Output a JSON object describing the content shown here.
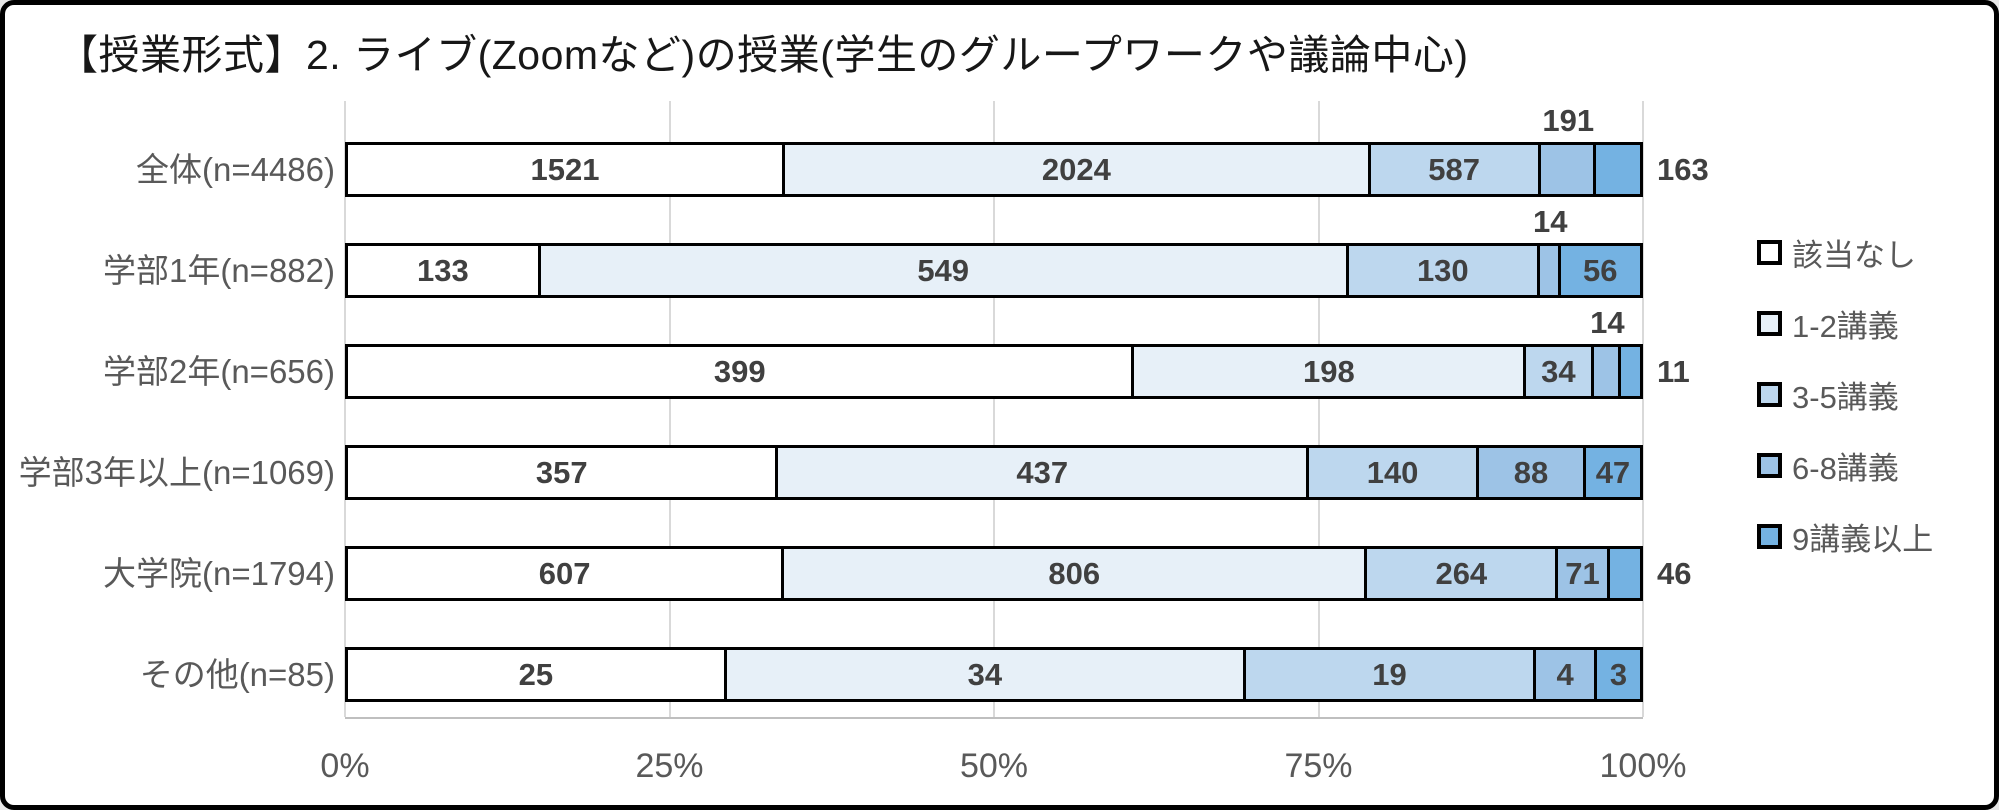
{
  "title": "【授業形式】2. ライブ(Zoomなど)の授業(学生のグループワークや議論中心)",
  "chart_data": {
    "type": "bar",
    "stacked": true,
    "orientation": "horizontal",
    "title": "【授業形式】2. ライブ(Zoomなど)の授業(学生のグループワークや議論中心)",
    "xlabel": "",
    "ylabel": "",
    "xlim": [
      0,
      100
    ],
    "x_ticks": [
      "0%",
      "25%",
      "50%",
      "75%",
      "100%"
    ],
    "grid": true,
    "legend_position": "right",
    "legend": [
      "該当なし",
      "1-2講義",
      "3-5講義",
      "6-8講義",
      "9講義以上"
    ],
    "series_colors": [
      "#ffffff",
      "#e7f0f8",
      "#bdd7ee",
      "#9dc3e6",
      "#74b2e2"
    ],
    "categories": [
      "全体(n=4486)",
      "学部1年(n=882)",
      "学部2年(n=656)",
      "学部3年以上(n=1069)",
      "大学院(n=1794)",
      "その他(n=85)"
    ],
    "rows": [
      {
        "category": "全体(n=4486)",
        "n": 4486,
        "values": [
          1521,
          2024,
          587,
          191,
          163
        ],
        "label_pos": [
          "inside",
          "inside",
          "inside",
          "above",
          "right"
        ]
      },
      {
        "category": "学部1年(n=882)",
        "n": 882,
        "values": [
          133,
          549,
          130,
          14,
          56
        ],
        "label_pos": [
          "inside",
          "inside",
          "inside",
          "above",
          "inside"
        ]
      },
      {
        "category": "学部2年(n=656)",
        "n": 656,
        "values": [
          399,
          198,
          34,
          14,
          11
        ],
        "label_pos": [
          "inside",
          "inside",
          "inside",
          "above",
          "right"
        ]
      },
      {
        "category": "学部3年以上(n=1069)",
        "n": 1069,
        "values": [
          357,
          437,
          140,
          88,
          47
        ],
        "label_pos": [
          "inside",
          "inside",
          "inside",
          "inside",
          "inside"
        ]
      },
      {
        "category": "大学院(n=1794)",
        "n": 1794,
        "values": [
          607,
          806,
          264,
          71,
          46
        ],
        "label_pos": [
          "inside",
          "inside",
          "inside",
          "inside",
          "right"
        ]
      },
      {
        "category": "その他(n=85)",
        "n": 85,
        "values": [
          25,
          34,
          19,
          4,
          3
        ],
        "label_pos": [
          "inside",
          "inside",
          "inside",
          "inside",
          "inside"
        ]
      }
    ]
  }
}
